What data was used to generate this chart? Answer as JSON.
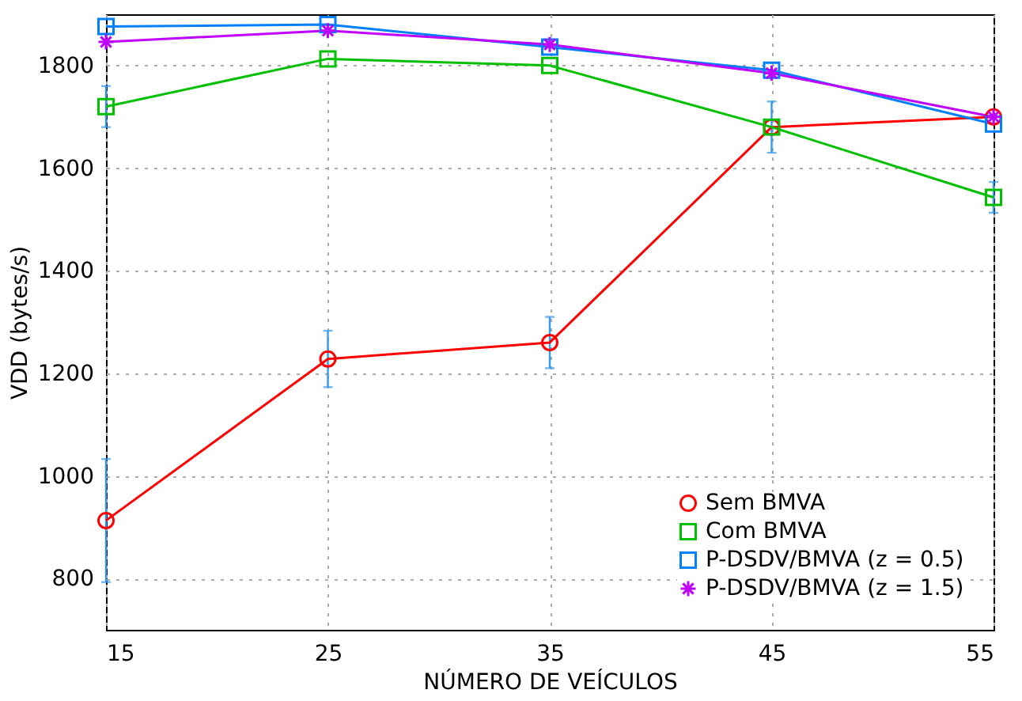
{
  "chart_data": {
    "type": "line",
    "xlabel": "NÚMERO DE VEÍCULOS",
    "ylabel": "VDD (bytes/s)",
    "x": [
      15,
      25,
      35,
      45,
      55
    ],
    "xlim": [
      15,
      55
    ],
    "xticks": [
      15,
      25,
      35,
      45,
      55
    ],
    "ylim": [
      700,
      1900
    ],
    "yticks": [
      800,
      1000,
      1200,
      1400,
      1600,
      1800
    ],
    "grid": true,
    "legend": "bottom right",
    "series": [
      {
        "name": "Sem BMVA",
        "color": "#ff0000",
        "marker": "circle",
        "values": [
          913,
          1228,
          1260,
          1680,
          1700
        ],
        "errors": [
          120,
          55,
          50,
          50,
          null
        ]
      },
      {
        "name": "Com BMVA",
        "color": "#00c000",
        "marker": "square",
        "values": [
          1720,
          1813,
          1800,
          1680,
          1543
        ],
        "errors": [
          40,
          null,
          null,
          null,
          30
        ]
      },
      {
        "name": "P-DSDV/BMVA (z = 0.5)",
        "color": "#0080ff",
        "marker": "square",
        "values": [
          1876,
          1880,
          1836,
          1791,
          1686
        ]
      },
      {
        "name": "P-DSDV/BMVA (z = 1.5)",
        "color": "#c000ff",
        "marker": "cross",
        "values": [
          1846,
          1868,
          1841,
          1785,
          1700
        ]
      }
    ]
  }
}
